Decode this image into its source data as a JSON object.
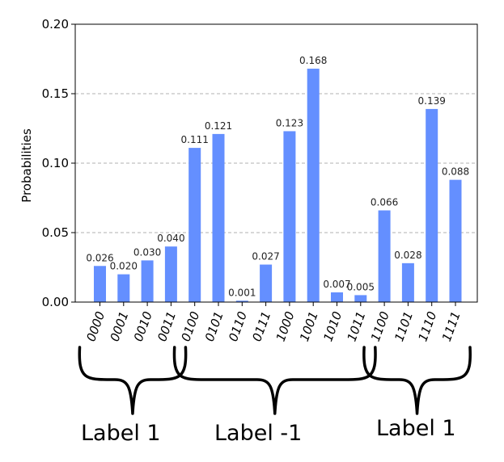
{
  "chart_data": {
    "type": "bar",
    "ylabel": "Probabilities",
    "ylim": [
      0,
      0.2
    ],
    "yticks": [
      "0.00",
      "0.05",
      "0.10",
      "0.15",
      "0.20"
    ],
    "ytick_values": [
      0,
      0.05,
      0.1,
      0.15,
      0.2
    ],
    "grid": "horizontal dashed",
    "bar_color": "#648fff",
    "categories": [
      "0000",
      "0001",
      "0010",
      "0011",
      "0100",
      "0101",
      "0110",
      "0111",
      "1000",
      "1001",
      "1010",
      "1011",
      "1100",
      "1101",
      "1110",
      "1111"
    ],
    "values": [
      0.026,
      0.02,
      0.03,
      0.04,
      0.111,
      0.121,
      0.001,
      0.027,
      0.123,
      0.168,
      0.007,
      0.005,
      0.066,
      0.028,
      0.139,
      0.088
    ],
    "value_labels": [
      "0.026",
      "0.020",
      "0.030",
      "0.040",
      "0.111",
      "0.121",
      "0.001",
      "0.027",
      "0.123",
      "0.168",
      "0.007",
      "0.005",
      "0.066",
      "0.028",
      "0.139",
      "0.088"
    ]
  },
  "groups": [
    {
      "label": "Label 1",
      "first": 0,
      "last": 3
    },
    {
      "label": "Label -1",
      "first": 4,
      "last": 11
    },
    {
      "label": "Label 1",
      "first": 12,
      "last": 15
    }
  ]
}
